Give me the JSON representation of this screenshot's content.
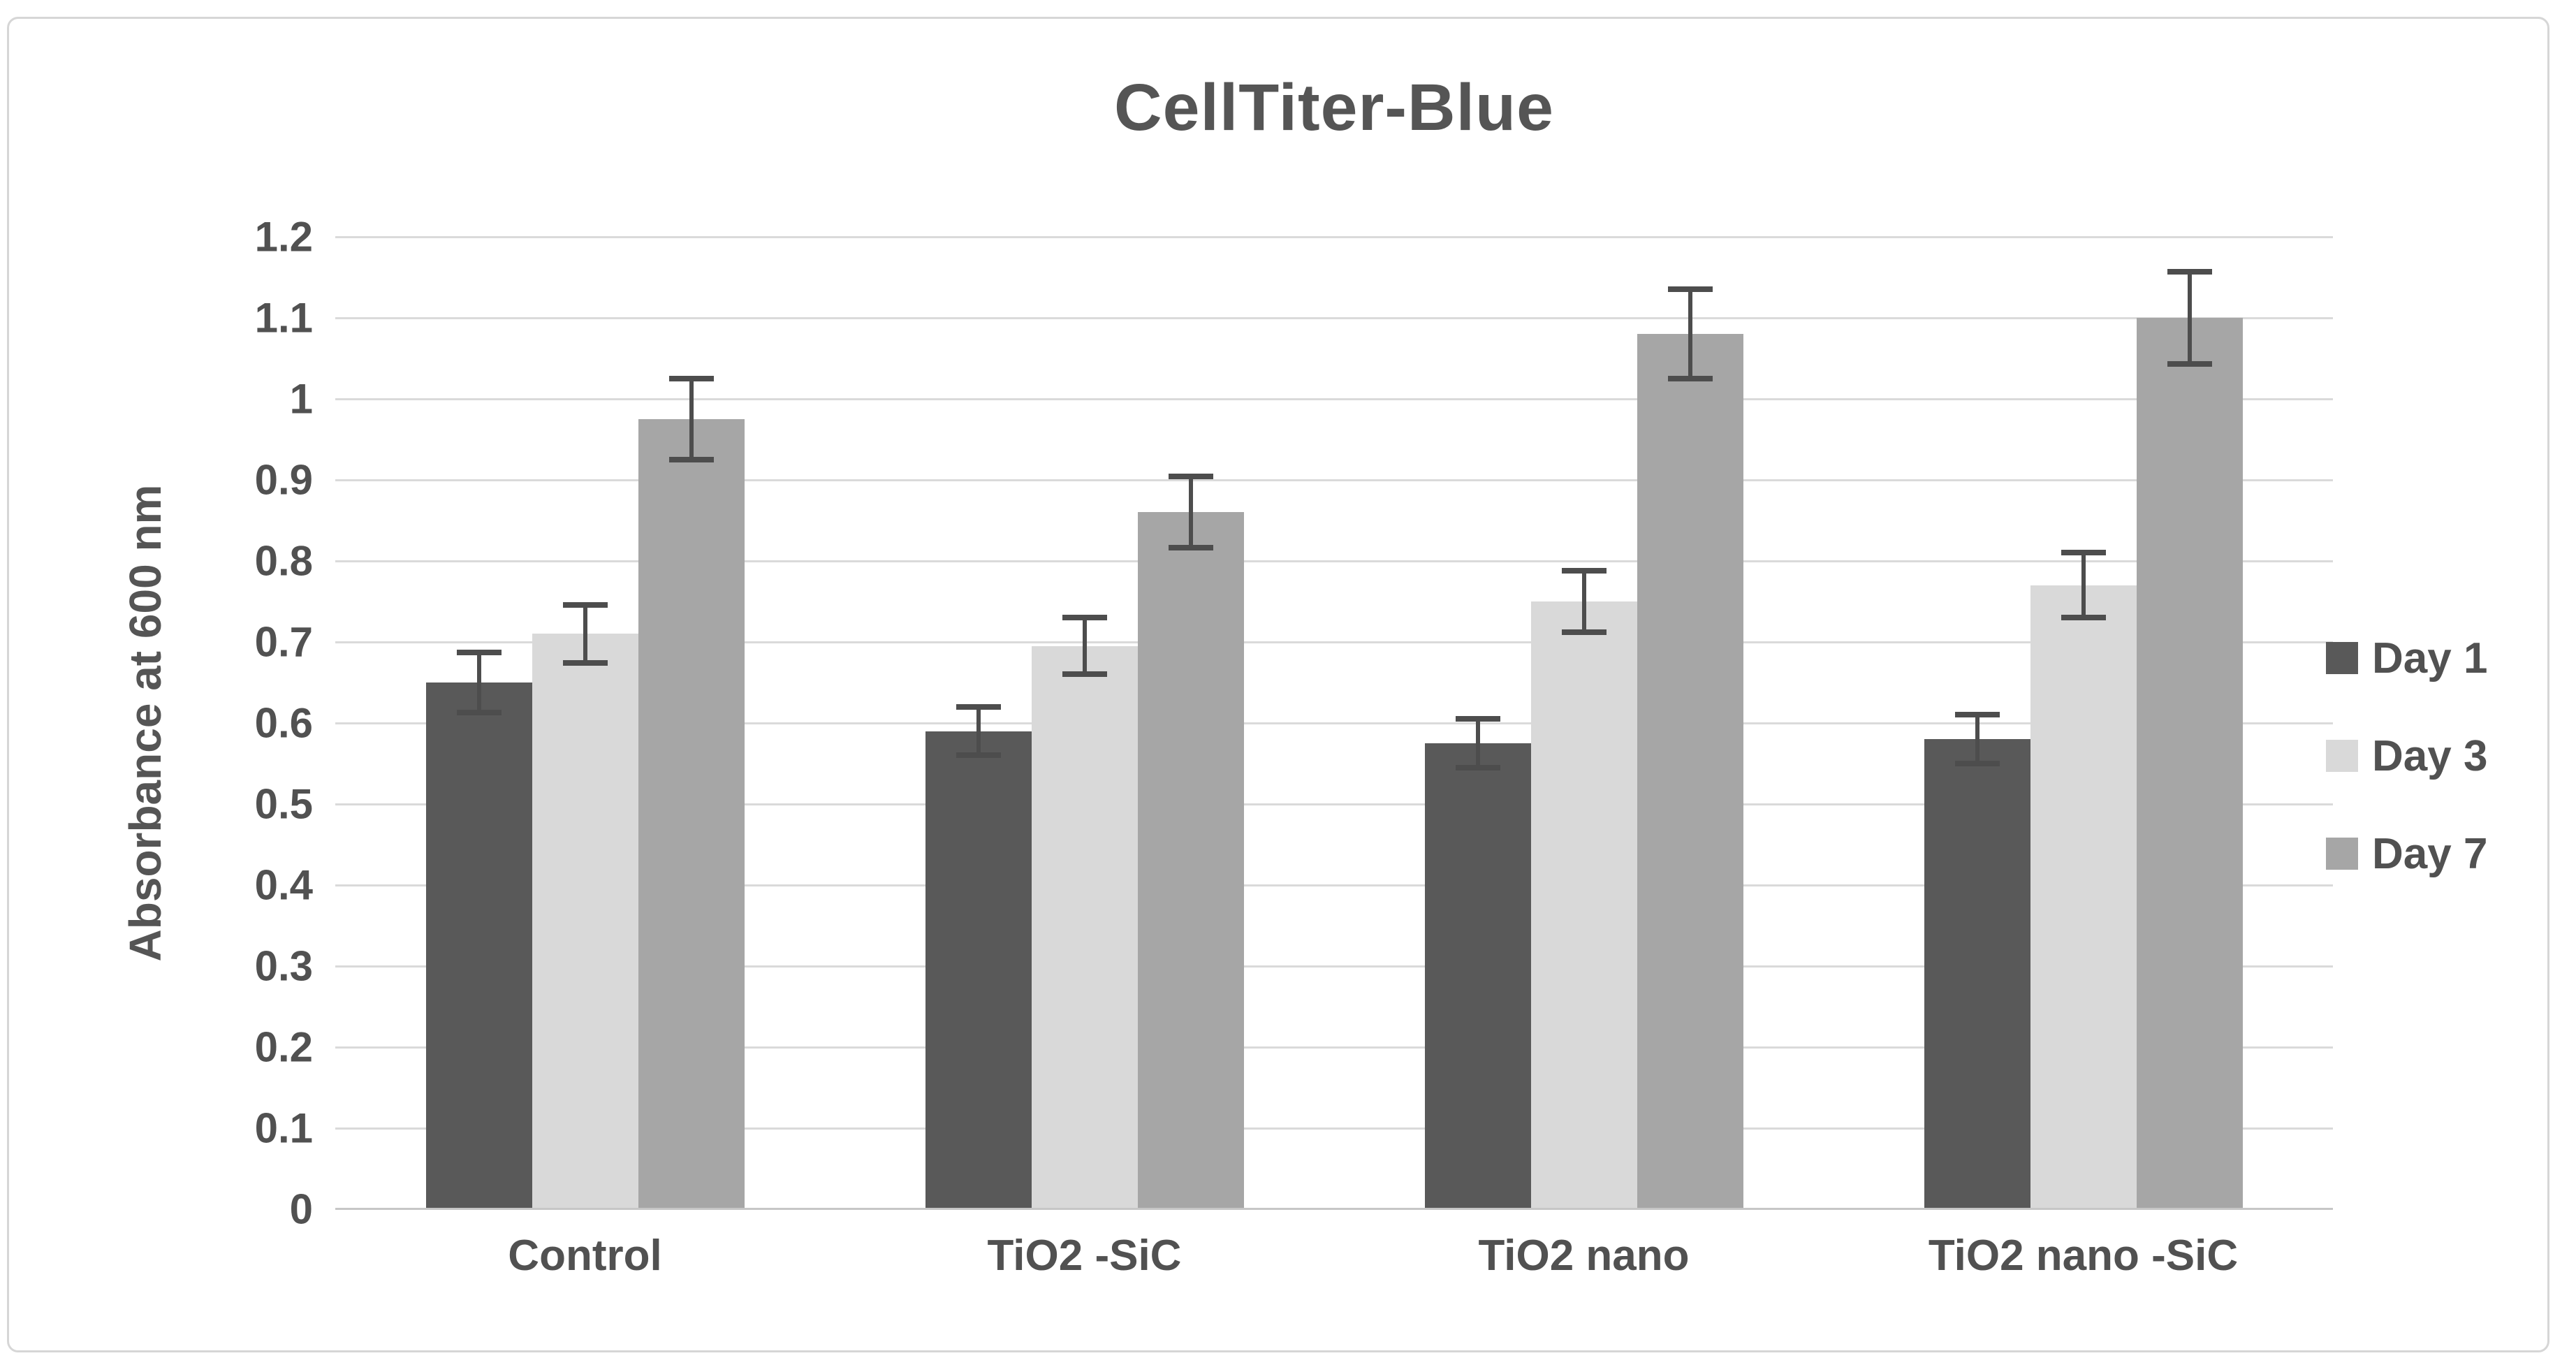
{
  "figure": {
    "title": "CellTiter-Blue"
  },
  "chart_data": {
    "type": "bar",
    "title": "CellTiter-Blue",
    "xlabel": "",
    "ylabel": "Absorbance at 600 nm",
    "ylim": [
      0,
      1.2
    ],
    "ytick_step": 0.1,
    "ytick_labels": [
      "0",
      "0.1",
      "0.2",
      "0.3",
      "0.4",
      "0.5",
      "0.6",
      "0.7",
      "0.8",
      "0.9",
      "1",
      "1.1",
      "1.2"
    ],
    "grid": true,
    "legend_position": "right",
    "categories": [
      "Control",
      "TiO2 -SiC",
      "TiO2 nano",
      "TiO2 nano -SiC"
    ],
    "series": [
      {
        "name": "Day 1",
        "color": "#595959",
        "values": [
          0.65,
          0.59,
          0.575,
          0.58
        ],
        "errors": [
          0.037,
          0.03,
          0.03,
          0.03
        ]
      },
      {
        "name": "Day 3",
        "color": "#d9d9d9",
        "values": [
          0.71,
          0.695,
          0.75,
          0.77
        ],
        "errors": [
          0.036,
          0.035,
          0.038,
          0.04
        ]
      },
      {
        "name": "Day 7",
        "color": "#a6a6a6",
        "values": [
          0.975,
          0.86,
          1.08,
          1.1
        ],
        "errors": [
          0.05,
          0.044,
          0.055,
          0.057
        ]
      }
    ],
    "error_bar_color": "#4d4d4d",
    "gridline_color": "#dadada",
    "axis_line_color": "#c6c6c6",
    "text_color": "#555555"
  }
}
